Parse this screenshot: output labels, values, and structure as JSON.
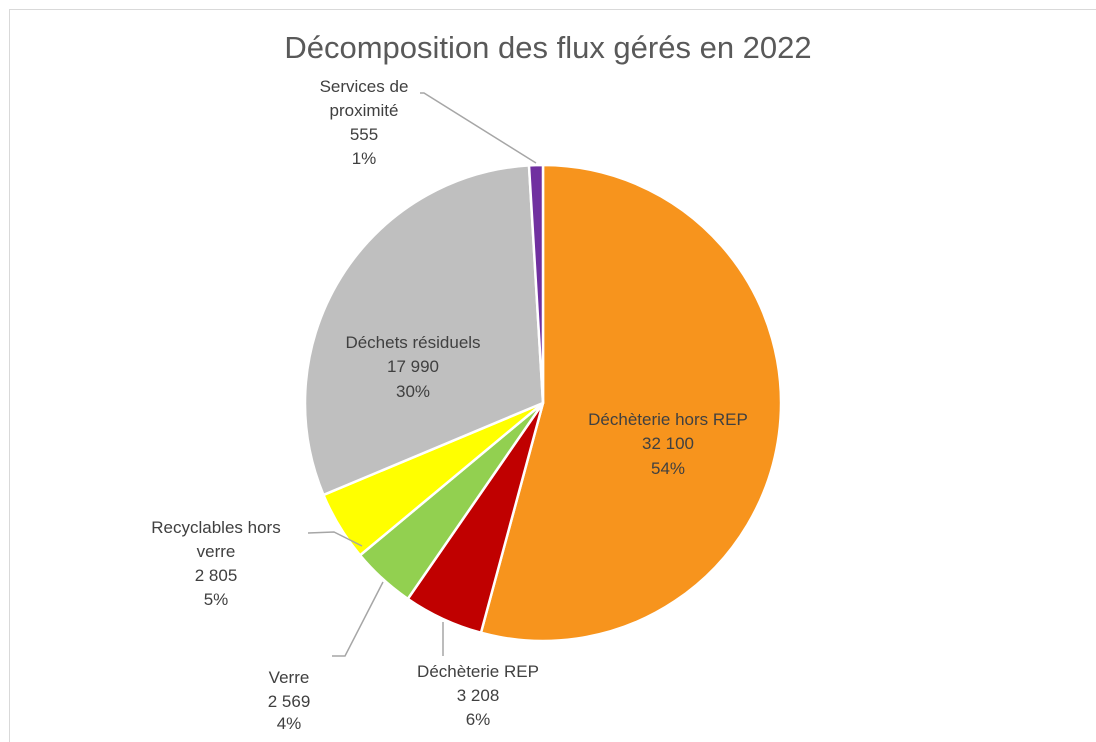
{
  "chart_data": {
    "type": "pie",
    "title": "Décomposition des flux gérés en 2022",
    "categories": [
      "Déchèterie hors REP",
      "Déchèterie REP",
      "Verre",
      "Recyclables hors verre",
      "Déchets résiduels",
      "Services de proximité"
    ],
    "values": [
      32100,
      3208,
      2569,
      2805,
      17990,
      555
    ],
    "value_labels": [
      "32 100",
      "3 208",
      "2 569",
      "2 805",
      "17 990",
      "555"
    ],
    "percents": [
      54,
      6,
      4,
      5,
      30,
      1
    ],
    "percent_labels": [
      "54%",
      "6%",
      "4%",
      "5%",
      "30%",
      "1%"
    ],
    "colors": [
      "#F7941D",
      "#C00000",
      "#92D050",
      "#FFFF00",
      "#BFBFBF",
      "#7030A0"
    ]
  }
}
